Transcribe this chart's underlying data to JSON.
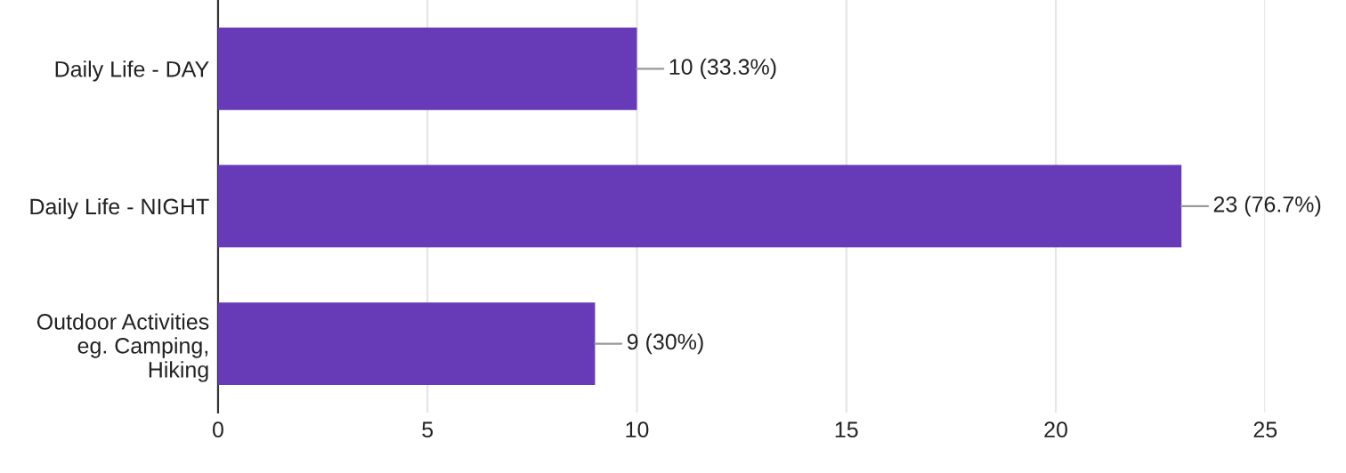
{
  "chart_data": {
    "type": "bar",
    "orientation": "horizontal",
    "categories": [
      "Daily Life - DAY",
      "Daily Life - NIGHT",
      "Outdoor Activities\neg. Camping,\nHiking"
    ],
    "values": [
      10,
      23,
      9
    ],
    "value_labels": [
      "10 (33.3%)",
      "23 (76.7%)",
      "9 (30%)"
    ],
    "color": "#673ab7",
    "xlim": [
      0,
      25
    ],
    "xticks": [
      0,
      5,
      10,
      15,
      20,
      25
    ],
    "grid": "x",
    "legend": false
  }
}
